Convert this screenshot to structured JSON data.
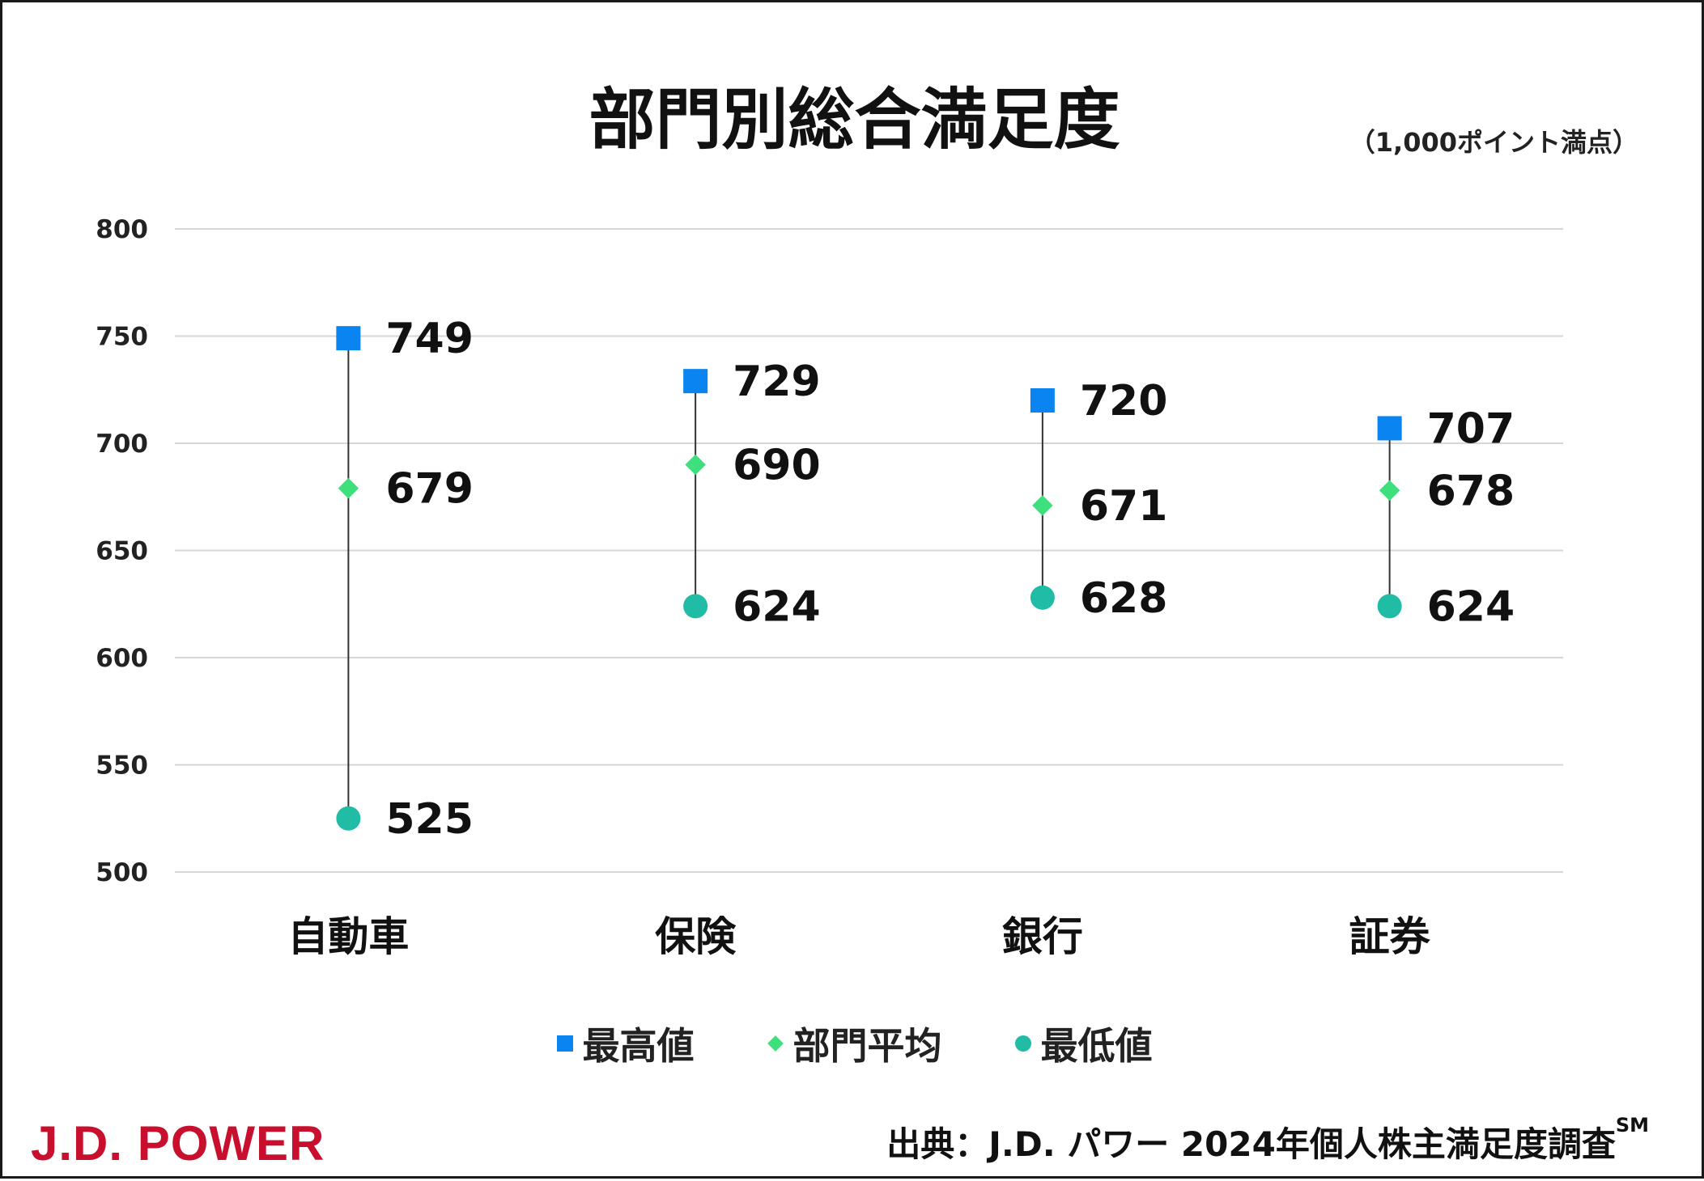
{
  "title": "部門別総合満足度",
  "subtitle": "（1,000ポイント満点）",
  "source": {
    "text": "出典：J.D. パワー 2024年個人株主満足度調査",
    "mark": "SM"
  },
  "brand": "J.D. POWER",
  "colors": {
    "max": "#0a84f0",
    "avg": "#3ee07d",
    "min": "#21bca6",
    "brand": "#c8102e"
  },
  "legend": [
    {
      "label": "最高値",
      "marker": "square"
    },
    {
      "label": "部門平均",
      "marker": "diamond"
    },
    {
      "label": "最低値",
      "marker": "circle"
    }
  ],
  "chart_data": {
    "type": "scatter",
    "title": "部門別総合満足度",
    "categories": [
      "自動車",
      "保険",
      "銀行",
      "証券"
    ],
    "series": [
      {
        "name": "最高値",
        "marker": "square",
        "values": [
          749,
          729,
          720,
          707
        ]
      },
      {
        "name": "部門平均",
        "marker": "diamond",
        "values": [
          679,
          690,
          671,
          678
        ]
      },
      {
        "name": "最低値",
        "marker": "circle",
        "values": [
          525,
          624,
          628,
          624
        ]
      }
    ],
    "ylim": [
      500,
      800
    ],
    "yticks": [
      800,
      750,
      700,
      650,
      600,
      550,
      500
    ],
    "grid": true,
    "legend_position": "bottom"
  }
}
